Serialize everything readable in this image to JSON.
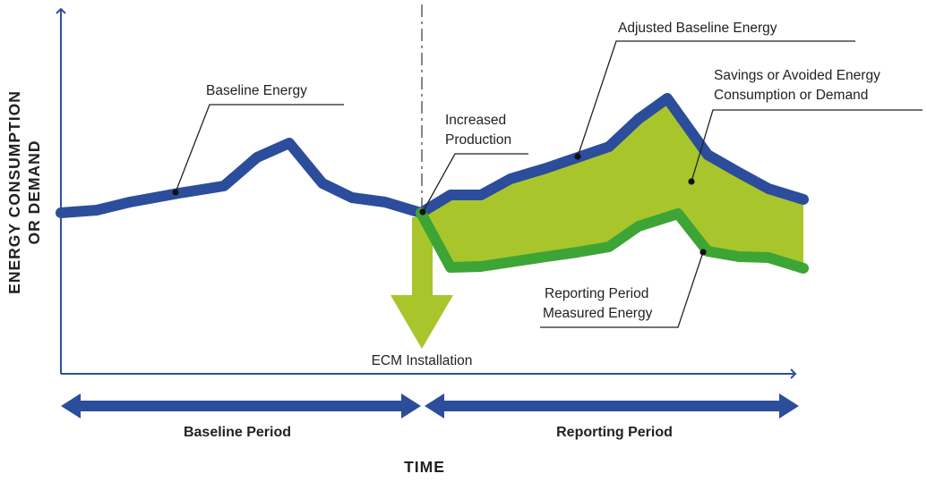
{
  "colors": {
    "axis": "#2f4f9c",
    "baseline_line": "#2b4d9c",
    "reporting_line": "#3da535",
    "savings_fill": "#a8c62c",
    "ecm_arrow": "#a8c62c",
    "period_arrow": "#2b4d9c",
    "text": "#222222"
  },
  "axes": {
    "y_title_line1": "ENERGY CONSUMPTION",
    "y_title_line2": "OR DEMAND",
    "x_title": "TIME"
  },
  "labels": {
    "baseline_energy": "Baseline Energy",
    "adjusted_baseline_energy": "Adjusted Baseline Energy",
    "savings_line1": "Savings or Avoided Energy",
    "savings_line2": "Consumption or Demand",
    "increased_production_line1": "Increased",
    "increased_production_line2": "Production",
    "reporting_measured_line1": "Reporting Period",
    "reporting_measured_line2": "Measured Energy",
    "ecm_installation": "ECM Installation"
  },
  "periods": {
    "baseline": "Baseline Period",
    "reporting": "Reporting Period"
  }
}
